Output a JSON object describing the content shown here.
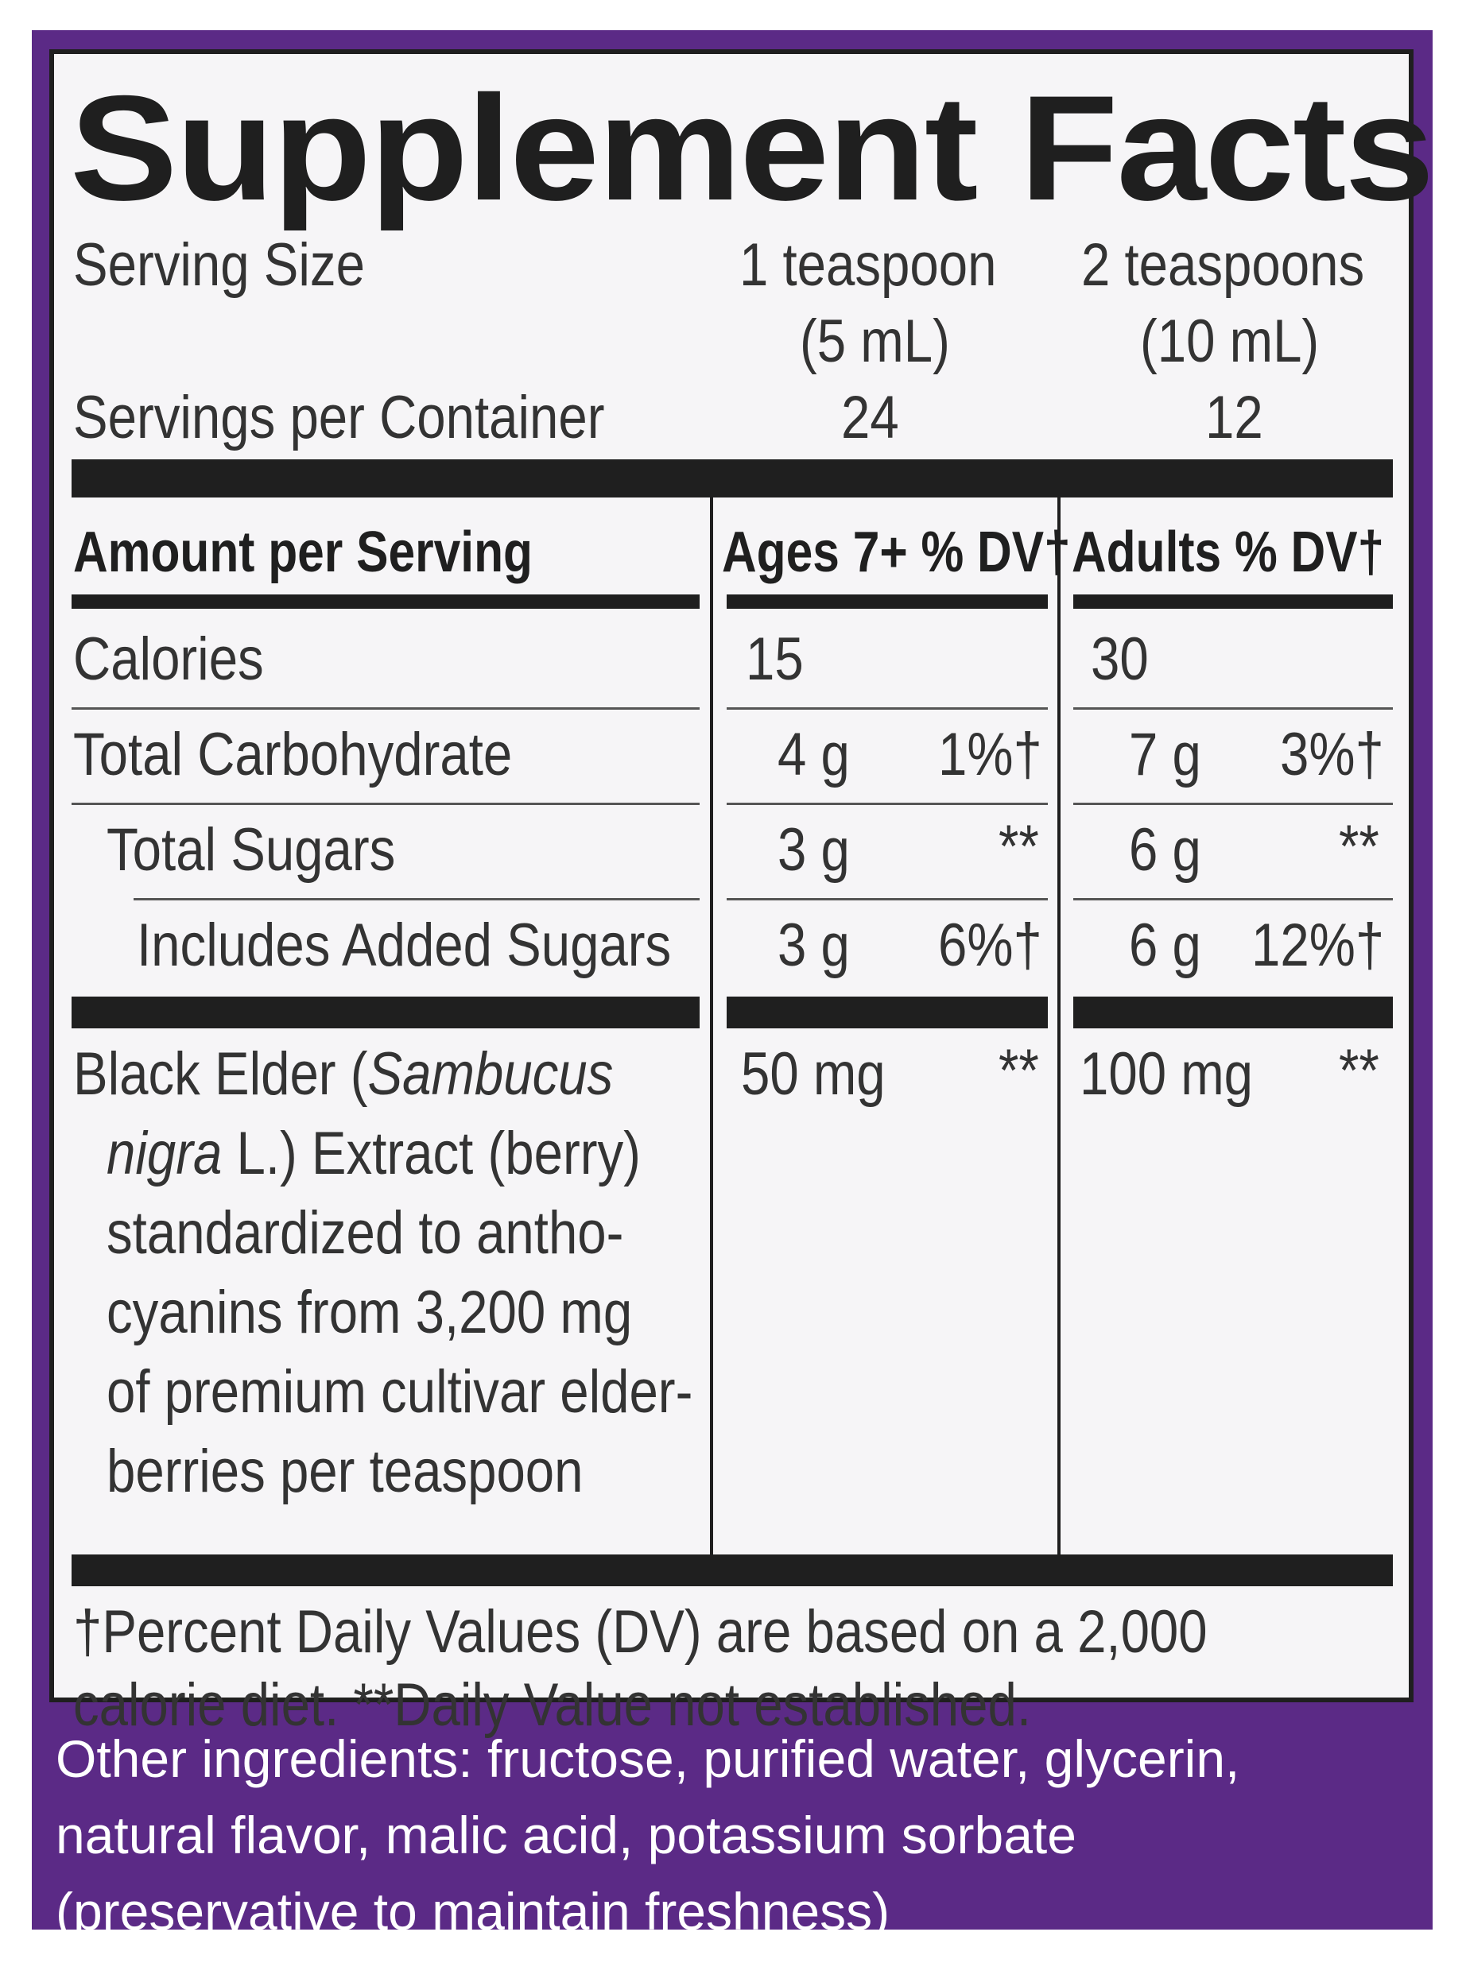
{
  "title": "Supplement Facts",
  "serving": {
    "size_label": "Serving Size",
    "size_col1_line1": "1 teaspoon",
    "size_col1_line2": "(5 mL)",
    "size_col2_line1": "2 teaspoons",
    "size_col2_line2": "(10 mL)",
    "per_container_label": "Servings per Container",
    "per_container_col1": "24",
    "per_container_col2": "12"
  },
  "header": {
    "amount_label": "Amount per Serving",
    "col1": "Ages 7+ % DV†",
    "col2": "Adults % DV†"
  },
  "rows": [
    {
      "label": "Calories",
      "col1_amount": "15",
      "col1_dv": "",
      "col2_amount": "30",
      "col2_dv": ""
    },
    {
      "label": "Total Carbohydrate",
      "col1_amount": "4 g",
      "col1_dv": "1%†",
      "col2_amount": "7 g",
      "col2_dv": "3%†"
    },
    {
      "label": "Total Sugars",
      "col1_amount": "3 g",
      "col1_dv": "**",
      "col2_amount": "6 g",
      "col2_dv": "**"
    },
    {
      "label": "Includes Added Sugars",
      "col1_amount": "3 g",
      "col1_dv": "6%†",
      "col2_amount": "6 g",
      "col2_dv": "12%†"
    }
  ],
  "elder": {
    "line1_a": "Black Elder (",
    "line1_b": "Sambucus",
    "line2_a": "nigra",
    "line2_b": " L.) Extract (berry)",
    "line3": "standardized to antho-",
    "line4": "cyanins from 3,200 mg",
    "line5": "of premium cultivar elder-",
    "line6": "berries per teaspoon",
    "col1_amount": "50 mg",
    "col1_dv": "**",
    "col2_amount": "100 mg",
    "col2_dv": "**"
  },
  "footnote": {
    "line1": "†Percent Daily Values (DV) are based on a 2,000",
    "line2": "calorie diet. **Daily Value not established."
  },
  "other_ingredients": {
    "line1": "Other ingredients: fructose, purified water, glycerin,",
    "line2": "natural flavor, malic acid, potassium sorbate",
    "line3": "(preservative to maintain freshness)"
  },
  "colors": {
    "border_purple": "#5b2a86",
    "panel_bg": "#f6f5f7",
    "rule": "#1f1f1f"
  }
}
